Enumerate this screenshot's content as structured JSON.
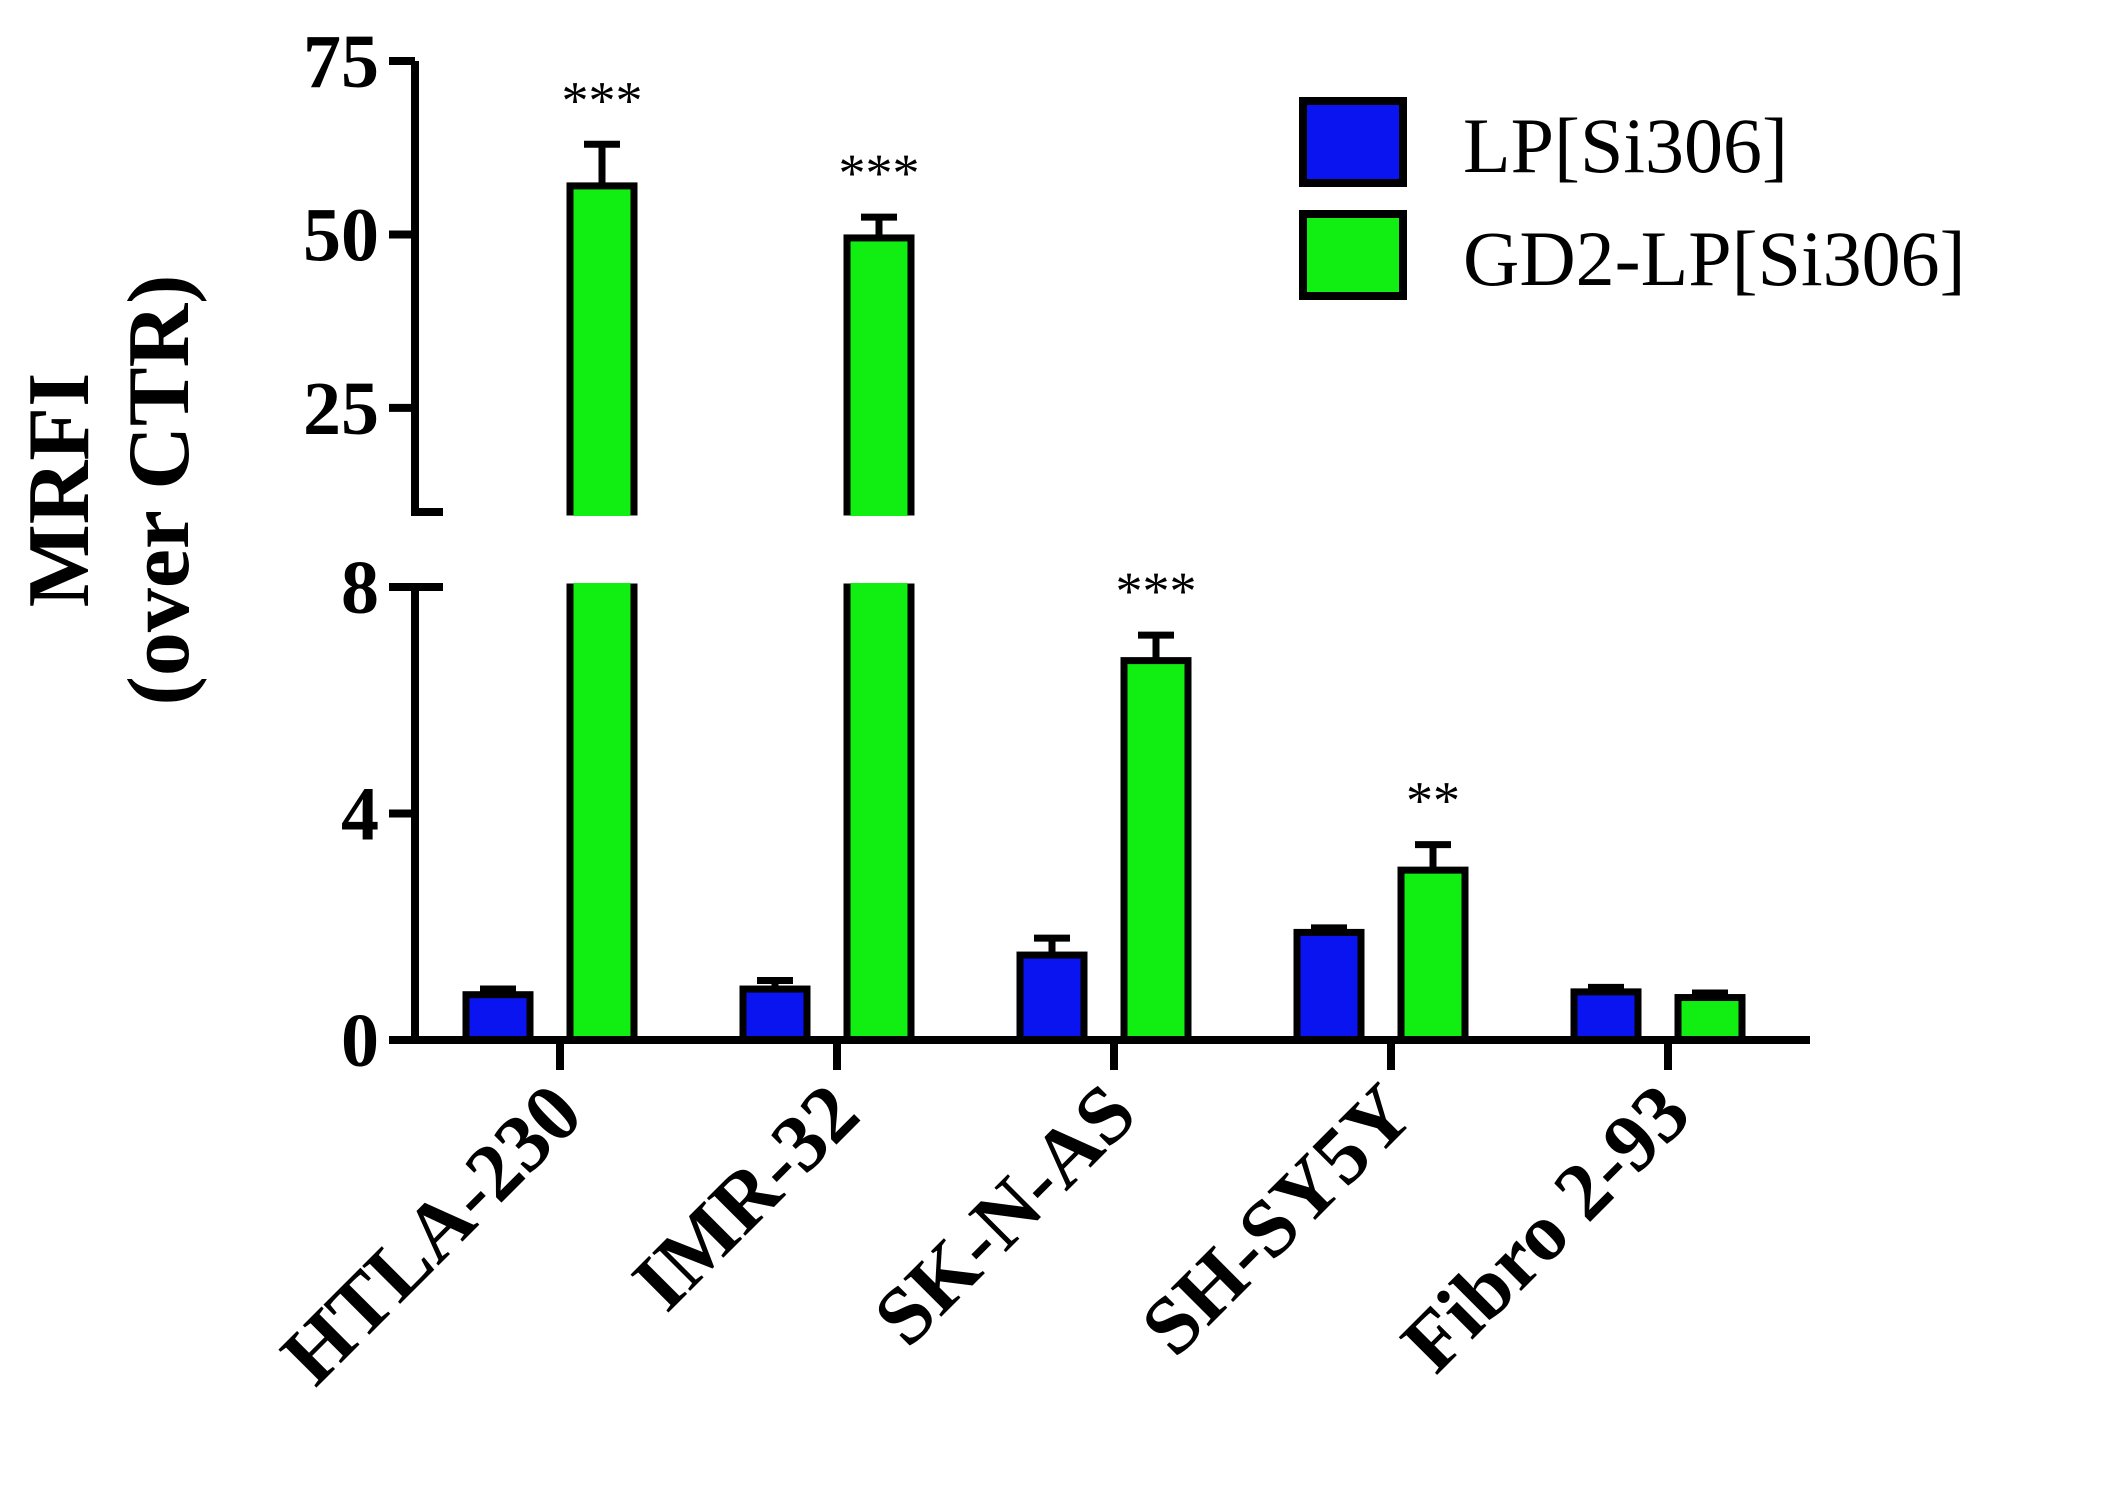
{
  "chart_data": {
    "type": "bar",
    "title": "",
    "xlabel": "",
    "ylabel": [
      "MRFI",
      "(over CTR)"
    ],
    "categories": [
      "HTLA-230",
      "IMR-32",
      "SK-N-AS",
      "SH-SY5Y",
      "Fibro 2-93"
    ],
    "series": [
      {
        "name": "LP[Si306]",
        "color": "#0a14f0",
        "values": [
          0.8,
          0.9,
          1.5,
          1.9,
          0.85
        ],
        "errors": [
          0.1,
          0.15,
          0.3,
          0.08,
          0.08
        ]
      },
      {
        "name": "GD2-LP[Si306]",
        "color": "#11ee11",
        "values": [
          57,
          49.5,
          6.7,
          3.0,
          0.75
        ],
        "errors": [
          6,
          3,
          0.45,
          0.45,
          0.08
        ],
        "significance": [
          "***",
          "***",
          "***",
          "**",
          ""
        ]
      }
    ],
    "y_axis": {
      "broken": true,
      "lower_segment": {
        "range": [
          0,
          8
        ],
        "ticks": [
          0,
          4,
          8
        ]
      },
      "upper_segment": {
        "range": [
          10,
          75
        ],
        "ticks": [
          25,
          50,
          75
        ]
      }
    },
    "legend_position": "top-right"
  }
}
